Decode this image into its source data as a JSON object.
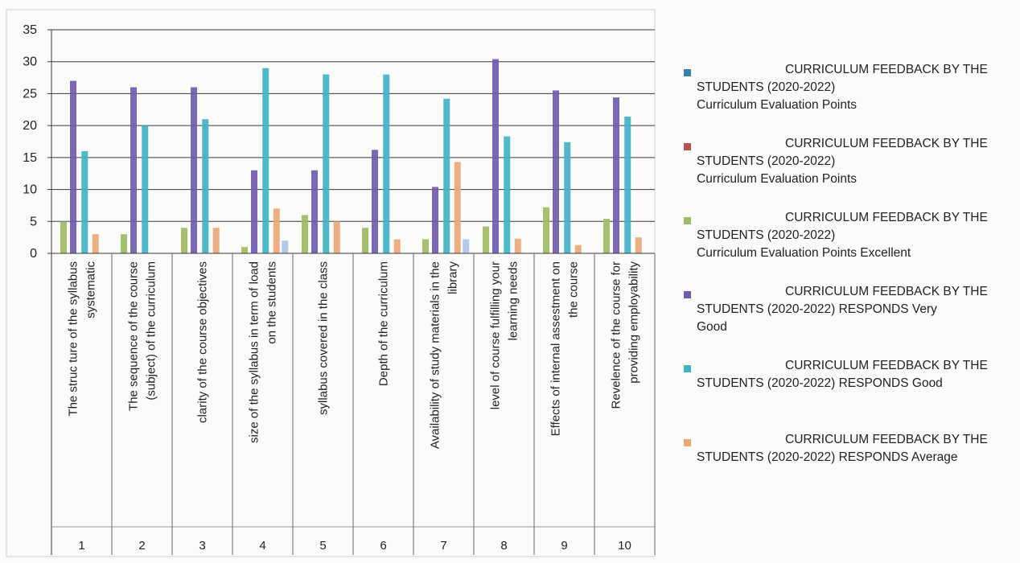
{
  "chart_data": {
    "type": "bar",
    "ylim": [
      0,
      35
    ],
    "yticks": [
      0,
      5,
      10,
      15,
      20,
      25,
      30,
      35
    ],
    "grid": true,
    "legend_position": "right",
    "category_numbers": [
      "1",
      "2",
      "3",
      "4",
      "5",
      "6",
      "7",
      "8",
      "9",
      "10"
    ],
    "categories": [
      [
        "The struc ture of the syllabus",
        "systematic"
      ],
      [
        "The sequence of the course",
        "(subject) of the curriculum"
      ],
      [
        "clarity of the course objectives"
      ],
      [
        "size of the syllabus in term of load",
        "on the students"
      ],
      [
        "syllabus covered in the class"
      ],
      [
        "Depth of the curriculum"
      ],
      [
        "Availability of study materials in the",
        "library"
      ],
      [
        "level of course fulfilling your",
        "learning needs"
      ],
      [
        "Effects of internal assestment on",
        "the course"
      ],
      [
        "Revelence of the course for",
        "providing employability"
      ]
    ],
    "series": [
      {
        "name": "CURRICULUM FEEDBACK BY THE\nSTUDENTS (2020-2022)\nCurriculum Evaluation  Points",
        "color": "#3b7fa8",
        "values": [
          0,
          0,
          0,
          0,
          0,
          0,
          0,
          0,
          0,
          0
        ]
      },
      {
        "name": "CURRICULUM FEEDBACK BY THE\nSTUDENTS (2020-2022)\nCurriculum Evaluation  Points",
        "color": "#b8514e",
        "values": [
          0,
          0,
          0,
          0,
          0,
          0,
          0,
          0,
          0,
          0
        ]
      },
      {
        "name": "CURRICULUM FEEDBACK BY THE\nSTUDENTS (2020-2022)\nCurriculum Evaluation  Points Excellent",
        "color": "#9dbb62",
        "values": [
          5,
          3,
          4,
          1,
          6,
          4,
          2.2,
          4.2,
          7.2,
          5.4
        ]
      },
      {
        "name": "CURRICULUM FEEDBACK BY THE\nSTUDENTS (2020-2022) RESPONDS Very\nGood",
        "color": "#6f5ab0",
        "values": [
          27,
          26,
          26,
          13,
          13,
          16.2,
          10.4,
          30.4,
          25.5,
          24.4
        ]
      },
      {
        "name": "CURRICULUM FEEDBACK BY THE\nSTUDENTS (2020-2022) RESPONDS Good",
        "color": "#3fb3c3",
        "values": [
          16,
          20,
          21,
          29,
          28,
          28,
          24.2,
          18.3,
          17.4,
          21.4
        ]
      },
      {
        "name": "CURRICULUM FEEDBACK BY THE\nSTUDENTS (2020-2022) RESPONDS Average",
        "color": "#eba876",
        "values": [
          3,
          0,
          4,
          7,
          5,
          2.2,
          14.3,
          2.3,
          1.3,
          2.5
        ]
      },
      {
        "name": "",
        "color": "#a9c6e6",
        "values": [
          0,
          0,
          0,
          2,
          0,
          0,
          2.2,
          0,
          0,
          0
        ]
      }
    ]
  }
}
